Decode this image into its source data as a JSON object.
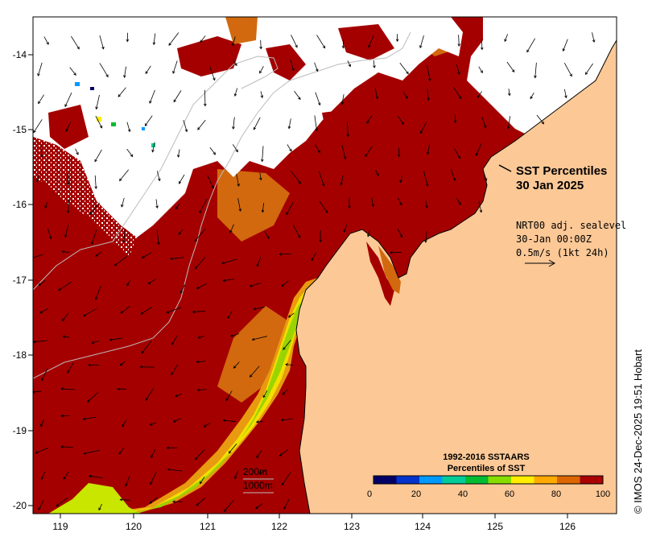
{
  "map": {
    "title_line1": "SST Percentiles",
    "title_line2": "30 Jan 2025",
    "current_info": {
      "line1": "NRT00 adj. sealevel",
      "line2": "30-Jan 00:00Z",
      "line3": "0.5m/s (1kt 24h)"
    },
    "longitude_ticks": [
      "119",
      "120",
      "121",
      "122",
      "123",
      "124",
      "125",
      "126"
    ],
    "latitude_ticks": [
      "-14",
      "-15",
      "-16",
      "-17",
      "-18",
      "-19",
      "-20"
    ],
    "contour_labels": [
      "200m",
      "1000m"
    ],
    "colorbar": {
      "title_line1": "1992-2016 SSTAARS",
      "title_line2": "Percentiles of SST",
      "tick_labels": [
        "0",
        "20",
        "40",
        "60",
        "80",
        "100"
      ],
      "colors": [
        "#000066",
        "#0033cc",
        "#0099ff",
        "#00cc99",
        "#00bb33",
        "#88dd00",
        "#ffee00",
        "#ffaa00",
        "#dd6600",
        "#aa0000"
      ]
    },
    "credit": "© IMOS 24-Dec-2025 19:51 Hobart",
    "colors": {
      "land": "#fcc896",
      "warm": "#a50000",
      "orange": "#d2690e",
      "cloud": "#ffffff"
    }
  }
}
